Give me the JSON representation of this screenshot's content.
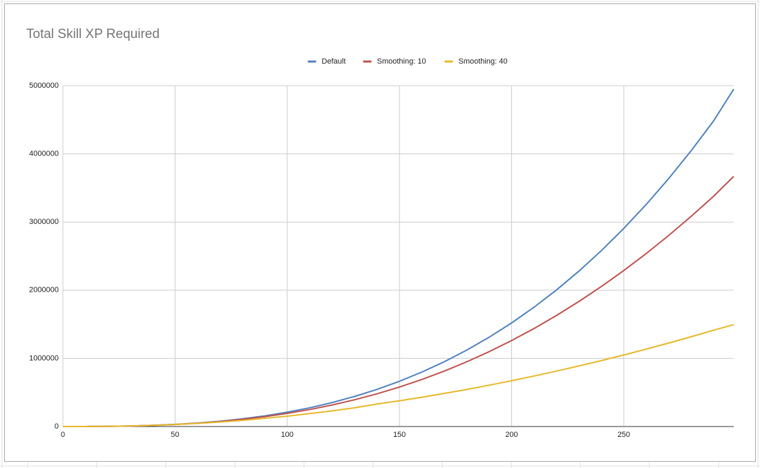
{
  "chart_data": {
    "type": "line",
    "title": "Total Skill XP Required",
    "x": [
      0,
      10,
      20,
      30,
      40,
      50,
      60,
      70,
      80,
      90,
      100,
      110,
      120,
      130,
      140,
      150,
      160,
      170,
      180,
      190,
      200,
      210,
      220,
      230,
      240,
      250,
      260,
      270,
      280,
      290,
      299
    ],
    "series": [
      {
        "name": "Default",
        "color": "#4f81bd",
        "values": [
          0,
          570,
          2960,
          8190,
          17280,
          31250,
          51120,
          77910,
          112640,
          156330,
          210000,
          274670,
          351360,
          441090,
          544880,
          663750,
          798720,
          950810,
          1121040,
          1310430,
          1520000,
          1750770,
          2003760,
          2279990,
          2580480,
          2906250,
          3258320,
          3637710,
          4045440,
          4482530,
          4950000
        ]
      },
      {
        "name": "Smoothing: 10",
        "color": "#c0504d",
        "values": [
          0,
          565,
          2910,
          7981,
          16692,
          29922,
          48513,
          73274,
          104980,
          144371,
          192150,
          248988,
          315521,
          392350,
          480039,
          579122,
          690094,
          813418,
          949521,
          1098796,
          1261600,
          1438258,
          1629057,
          1834252,
          2054062,
          2288672,
          2538231,
          2802855,
          3082625,
          3377586,
          3670000
        ]
      },
      {
        "name": "Smoothing: 40",
        "color": "#e6b829",
        "values": [
          0,
          540,
          2810,
          7780,
          16400,
          29700,
          46000,
          66000,
          90000,
          120000,
          152000,
          190000,
          230000,
          275000,
          329280,
          378000,
          430080,
          485520,
          544320,
          606480,
          672000,
          740880,
          813120,
          888720,
          967680,
          1050000,
          1135680,
          1224720,
          1317120,
          1412880,
          1495000
        ]
      }
    ],
    "xlim": [
      0,
      299
    ],
    "ylim": [
      0,
      5000000
    ],
    "xticks": [
      0,
      50,
      100,
      150,
      200,
      250
    ],
    "yticks": [
      0,
      1000000,
      2000000,
      3000000,
      4000000,
      5000000
    ],
    "grid": true,
    "legend": "top"
  }
}
